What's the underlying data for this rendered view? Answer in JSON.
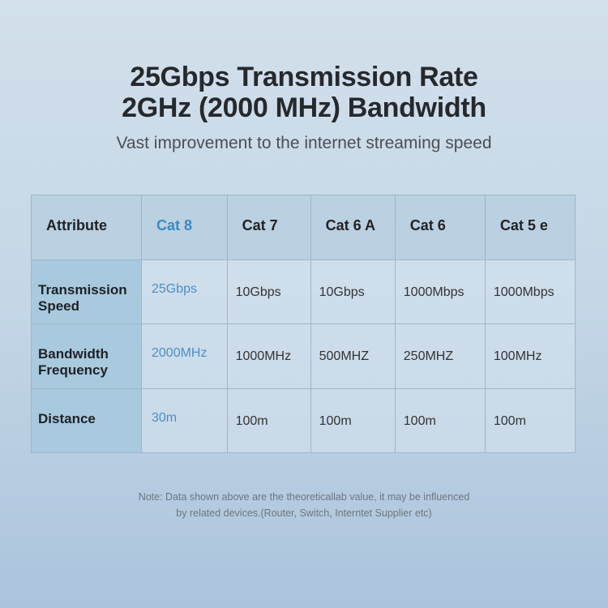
{
  "title_line1": "25Gbps Transmission Rate",
  "title_line2": "2GHz (2000 MHz) Bandwidth",
  "subtitle": "Vast improvement to the internet streaming speed",
  "table": {
    "headers": [
      "Attribute",
      "Cat 8",
      "Cat 7",
      "Cat 6 A",
      "Cat 6",
      "Cat 5 e"
    ],
    "rows": [
      {
        "label": "Transmission Speed",
        "values": [
          "25Gbps",
          "10Gbps",
          "10Gbps",
          "1000Mbps",
          "1000Mbps"
        ]
      },
      {
        "label": "Bandwidth Frequency",
        "values": [
          "2000MHz",
          "1000MHz",
          "500MHZ",
          "250MHZ",
          "100MHz"
        ]
      },
      {
        "label": "Distance",
        "values": [
          "30m",
          "100m",
          "100m",
          "100m",
          "100m"
        ]
      }
    ]
  },
  "note_line1": "Note: Data shown above are the theoreticallab value, it may be influenced",
  "note_line2": "by related devices.(Router, Switch, Interntet Supplier etc)",
  "colors": {
    "highlight": "#3b8ac4",
    "attribute_column": "#a8c9de"
  }
}
